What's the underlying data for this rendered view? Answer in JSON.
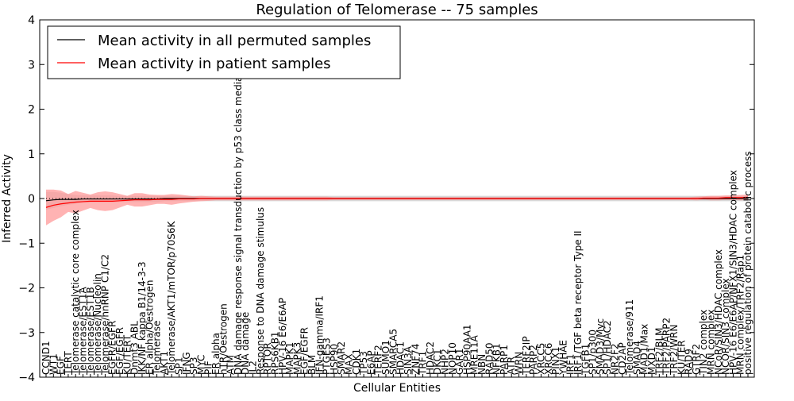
{
  "chart_data": {
    "type": "line",
    "title": "Regulation of Telomerase -- 75 samples",
    "xlabel": "Cellular Entities",
    "ylabel": "Inferred Activity",
    "ylim": [
      -4,
      4
    ],
    "yticks": [
      -4,
      -3,
      -2,
      -1,
      0,
      1,
      2,
      3,
      4
    ],
    "ytick_labels": [
      "−4",
      "−3",
      "−2",
      "−1",
      "0",
      "1",
      "2",
      "3",
      "4"
    ],
    "zero_line": 0,
    "legend": {
      "placement": "top-left",
      "entries": [
        {
          "label": "Mean activity in all permuted samples",
          "color": "#000000"
        },
        {
          "label": "Mean activity in patient samples",
          "color": "#ff0000"
        }
      ]
    },
    "colors": {
      "permuted_line": "#000000",
      "patient_line": "#ff0000",
      "permuted_band": "#c8c8c8",
      "patient_band": "#ff9a9a",
      "axes": "#000000"
    },
    "categories": [
      "CCND1",
      "WT1",
      "EGF",
      "TERT",
      "Telomerase catalytic core complex",
      "Telomerase/EST1A",
      "Telomerase/EST1B",
      "Telomerase/Nucleolin",
      "Telomerase/hnRNP C1/C2",
      "EGFR/EGFR",
      "EGF/EGFR",
      "KU/TERT",
      "Dnmt3 ABL",
      "IKK/NF kappa B1/14-3-3",
      "ER alpha/Oestrogen",
      "Telomerase",
      "AKT1",
      "Telomerase/AKT1/mTOR/p70S6K",
      "SP1",
      "IFNG",
      "SP3",
      "MYC",
      "PIF",
      "ER alpha",
      "hTR/Oestrogen",
      "ATM",
      "DNA damage response signal transduction by p53 class mediator",
      "DNA damage",
      "IL2",
      "Response to DNA damage stimulus",
      "RPTOR",
      "RPS6KB1",
      "HPV-16 E6/E6AP",
      "MAPK1",
      "MAPK3",
      "EGF/EGFR",
      "BLM",
      "IFN-gamma/IRF1",
      "PTGES3",
      "HSP90",
      "SMAR2",
      "MAX",
      "CDK1",
      "TP53",
      "E6AP",
      "TERF2",
      "SUMO1",
      "SMARCA5",
      "HDAC1",
      "SIN3A",
      "ZNF74",
      "TRF1",
      "HDAC2",
      "DKC1",
      "NHP2",
      "NOP10",
      "GAR1",
      "HSP90AA1",
      "MRE11A",
      "NBN",
      "RAD50",
      "NFKB1",
      "PARP1",
      "ATR",
      "WRN",
      "TERF2IP",
      "PARP2",
      "XRCC5",
      "XRCC6",
      "PINX1",
      "YWHAE",
      "IRF1",
      "IRF1/TGF beta receptor Type II",
      "TGFB1",
      "SP1/p300",
      "SMAD3/Myc",
      "SP1/HDAC2",
      "NR2F2",
      "CD2AP",
      "Telomerase/911",
      "SMAD4",
      "MAD1/Max",
      "MXD1",
      "TRF2/BLM",
      "TRF2/PARP2",
      "TRF2/WRN",
      "KU/TER",
      "RAD9",
      "GTRF2",
      "TIN2 complex",
      "MRN complex",
      "NCoR/SIN3/HDAC complex",
      "NCOR/SIN3 complex",
      "HPV-16 E6/E6AP/NFX1/SIN3/HDAC complex",
      "MRN complex/TRF2/Rap1",
      "positive regulation of protein catabolic process"
    ],
    "label_display": "full",
    "patient_mean": [
      -0.2,
      -0.15,
      -0.12,
      -0.1,
      -0.08,
      -0.07,
      -0.06,
      -0.06,
      -0.06,
      -0.06,
      -0.05,
      -0.04,
      -0.03,
      -0.03,
      -0.03,
      -0.02,
      -0.02,
      -0.02,
      -0.01,
      -0.01,
      -0.01,
      0.0,
      0.0,
      0.0,
      0.0,
      0.0,
      0.0,
      0.0,
      0.0,
      0.0,
      0.0,
      0.0,
      0.0,
      0.0,
      0.0,
      0.0,
      0.0,
      0.0,
      0.0,
      0.0,
      0.0,
      0.0,
      0.0,
      0.0,
      0.0,
      0.0,
      0.0,
      0.0,
      0.0,
      0.0,
      0.0,
      0.0,
      0.0,
      0.0,
      0.0,
      0.0,
      0.0,
      0.0,
      0.0,
      0.0,
      0.0,
      0.0,
      0.0,
      0.0,
      0.0,
      0.0,
      0.0,
      0.0,
      0.0,
      0.0,
      0.0,
      0.0,
      0.0,
      0.0,
      0.0,
      0.0,
      0.0,
      0.0,
      0.0,
      0.0,
      0.0,
      0.0,
      0.0,
      0.0,
      0.0,
      0.0,
      0.0,
      0.0,
      0.0,
      0.01,
      0.01,
      0.01,
      0.02,
      0.02,
      0.02,
      0.03
    ],
    "patient_band": [
      0.4,
      0.35,
      0.3,
      0.2,
      0.25,
      0.2,
      0.15,
      0.2,
      0.22,
      0.2,
      0.15,
      0.1,
      0.15,
      0.15,
      0.12,
      0.1,
      0.1,
      0.12,
      0.1,
      0.08,
      0.06,
      0.06,
      0.05,
      0.04,
      0.04,
      0.04,
      0.04,
      0.04,
      0.04,
      0.04,
      0.04,
      0.04,
      0.04,
      0.04,
      0.04,
      0.04,
      0.04,
      0.04,
      0.04,
      0.03,
      0.03,
      0.03,
      0.03,
      0.03,
      0.03,
      0.03,
      0.03,
      0.03,
      0.03,
      0.03,
      0.03,
      0.03,
      0.03,
      0.03,
      0.03,
      0.03,
      0.03,
      0.03,
      0.03,
      0.03,
      0.03,
      0.03,
      0.03,
      0.03,
      0.03,
      0.03,
      0.03,
      0.03,
      0.03,
      0.03,
      0.03,
      0.03,
      0.03,
      0.03,
      0.03,
      0.03,
      0.03,
      0.03,
      0.03,
      0.03,
      0.03,
      0.03,
      0.03,
      0.03,
      0.03,
      0.03,
      0.03,
      0.03,
      0.04,
      0.04,
      0.05,
      0.05,
      0.05,
      0.05,
      0.06,
      0.06
    ],
    "permuted_mean": [
      -0.05,
      -0.03,
      -0.02,
      -0.02,
      -0.02,
      -0.01,
      -0.01,
      -0.01,
      -0.01,
      -0.01,
      -0.01,
      -0.01,
      -0.01,
      -0.01,
      -0.01,
      -0.01,
      0.0,
      0.0,
      0.0,
      0.0,
      0.0,
      0.0,
      0.0,
      0.0,
      0.0,
      0.0,
      0.0,
      0.0,
      0.0,
      0.0,
      0.0,
      0.0,
      0.0,
      0.0,
      0.0,
      0.0,
      0.0,
      0.0,
      0.0,
      0.0,
      0.0,
      0.0,
      0.0,
      0.0,
      0.0,
      0.0,
      0.0,
      0.0,
      0.0,
      0.0,
      0.0,
      0.0,
      0.0,
      0.0,
      0.0,
      0.0,
      0.0,
      0.0,
      0.0,
      0.0,
      0.0,
      0.0,
      0.0,
      0.0,
      0.0,
      0.0,
      0.0,
      0.0,
      0.0,
      0.0,
      0.0,
      0.0,
      0.0,
      0.0,
      0.0,
      0.0,
      0.0,
      0.0,
      0.0,
      0.0,
      0.0,
      0.0,
      0.0,
      0.0,
      0.0,
      0.0,
      0.0,
      0.0,
      0.0,
      0.0,
      0.0,
      0.0,
      0.0,
      0.0,
      0.0,
      0.0
    ],
    "permuted_band": [
      0.2,
      0.18,
      0.15,
      0.12,
      0.1,
      0.08,
      0.08,
      0.08,
      0.08,
      0.08,
      0.07,
      0.07,
      0.07,
      0.07,
      0.07,
      0.07,
      0.06,
      0.06,
      0.06,
      0.06,
      0.06,
      0.06,
      0.06,
      0.06,
      0.06,
      0.06,
      0.06,
      0.06,
      0.06,
      0.06,
      0.06,
      0.06,
      0.06,
      0.06,
      0.06,
      0.06,
      0.06,
      0.06,
      0.06,
      0.06,
      0.06,
      0.06,
      0.06,
      0.06,
      0.06,
      0.06,
      0.06,
      0.06,
      0.06,
      0.06,
      0.06,
      0.06,
      0.06,
      0.06,
      0.06,
      0.06,
      0.06,
      0.06,
      0.06,
      0.06,
      0.06,
      0.06,
      0.06,
      0.06,
      0.06,
      0.06,
      0.06,
      0.06,
      0.06,
      0.06,
      0.06,
      0.06,
      0.06,
      0.06,
      0.06,
      0.06,
      0.06,
      0.06,
      0.06,
      0.06,
      0.06,
      0.06,
      0.06,
      0.06,
      0.06,
      0.06,
      0.06,
      0.06,
      0.06,
      0.06,
      0.06,
      0.06,
      0.06,
      0.06,
      0.06,
      0.06
    ]
  }
}
